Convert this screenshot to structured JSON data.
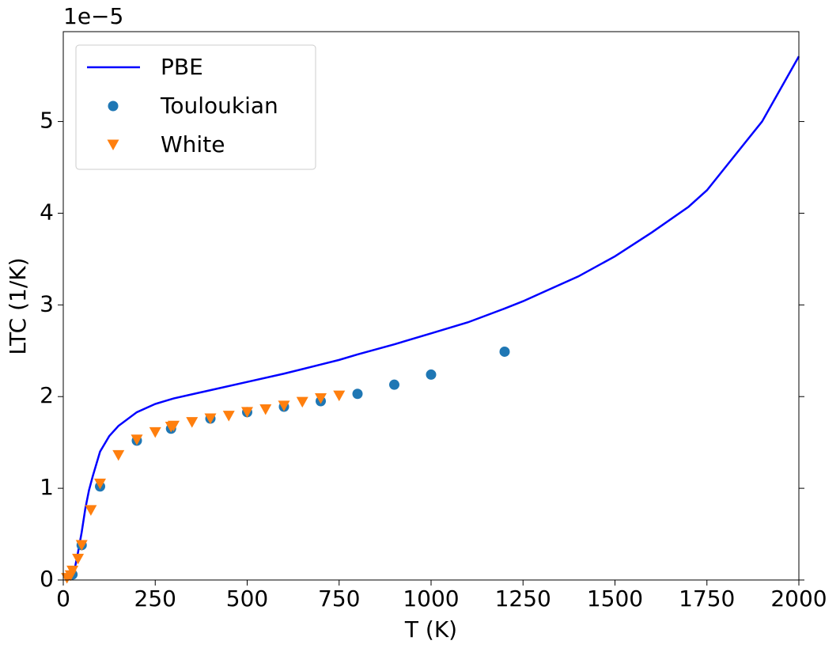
{
  "chart_data": {
    "type": "line",
    "x_label": "T (K)",
    "y_label": "LTC (1/K)",
    "y_offset_label": "1e−5",
    "xlim": [
      0,
      2000
    ],
    "xticks": [
      0,
      250,
      500,
      750,
      1000,
      1250,
      1500,
      1750,
      2000
    ],
    "ylim": [
      0,
      5.98
    ],
    "yticks": [
      0,
      1,
      2,
      3,
      4,
      5
    ],
    "legend": "upper left",
    "series": [
      {
        "name": "PBE",
        "color": "#0000ff",
        "mode": "line",
        "x": [
          10,
          20,
          30,
          40,
          50,
          60,
          70,
          80,
          100,
          125,
          150,
          200,
          250,
          300,
          400,
          500,
          600,
          700,
          750,
          800,
          900,
          1000,
          1100,
          1200,
          1250,
          1300,
          1400,
          1500,
          1600,
          1700,
          1750,
          1800,
          1900,
          2000
        ],
        "values": [
          0,
          0.02,
          0.1,
          0.3,
          0.52,
          0.78,
          0.98,
          1.13,
          1.4,
          1.57,
          1.68,
          1.83,
          1.92,
          1.98,
          2.07,
          2.16,
          2.25,
          2.35,
          2.4,
          2.46,
          2.57,
          2.69,
          2.81,
          2.96,
          3.04,
          3.13,
          3.31,
          3.53,
          3.79,
          4.07,
          4.25,
          4.5,
          5.0,
          5.71
        ]
      },
      {
        "name": "Touloukian",
        "color": "#1f77b4",
        "mode": "circle",
        "x": [
          25,
          50,
          100,
          200,
          293,
          400,
          500,
          600,
          700,
          800,
          900,
          1000,
          1200
        ],
        "values": [
          0.06,
          0.38,
          1.02,
          1.52,
          1.65,
          1.76,
          1.83,
          1.89,
          1.95,
          2.03,
          2.13,
          2.24,
          2.49
        ]
      },
      {
        "name": "White",
        "color": "#ff7f0e",
        "mode": "triangle-down",
        "x": [
          10,
          20,
          25,
          40,
          50,
          75,
          100,
          150,
          200,
          250,
          293,
          300,
          350,
          400,
          450,
          500,
          550,
          600,
          650,
          700,
          750
        ],
        "values": [
          0.02,
          0.05,
          0.1,
          0.23,
          0.38,
          0.76,
          1.05,
          1.36,
          1.53,
          1.61,
          1.67,
          1.68,
          1.72,
          1.76,
          1.79,
          1.83,
          1.86,
          1.9,
          1.94,
          1.98,
          2.01
        ]
      }
    ]
  }
}
